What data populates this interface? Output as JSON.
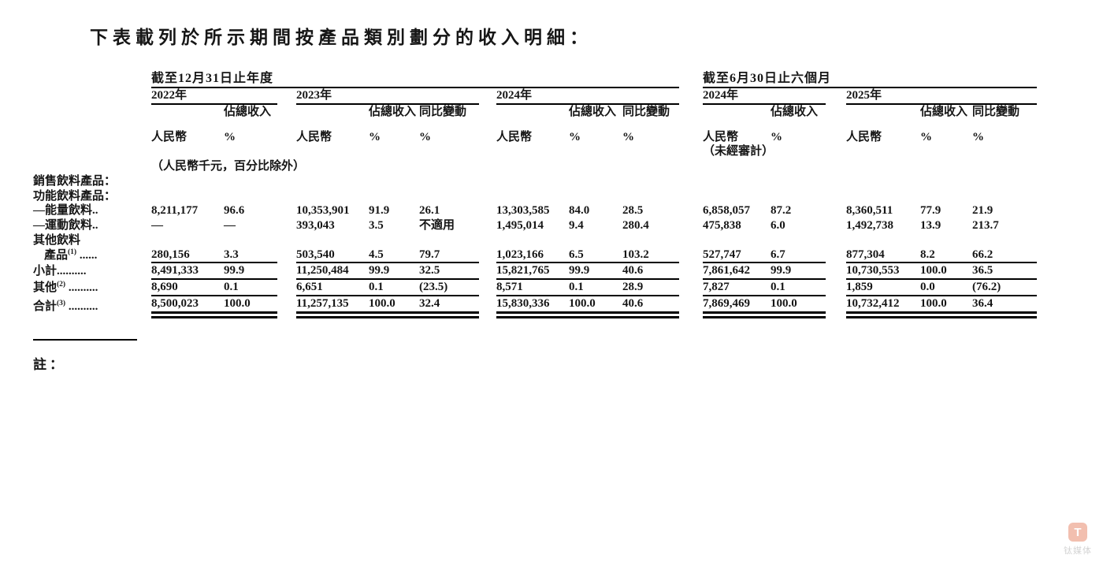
{
  "page": {
    "title": "下表載列於所示期間按產品類別劃分的收入明細：",
    "unit_note": "（人民幣千元，百分比除外）",
    "note_label": "註："
  },
  "table": {
    "period_groups": [
      {
        "label": "截至12月31日止年度"
      },
      {
        "label": "截至6月30日止六個月"
      }
    ],
    "years": [
      {
        "label": "2022年"
      },
      {
        "label": "2023年"
      },
      {
        "label": "2024年"
      },
      {
        "label": "2024年",
        "note": "（未經審計）"
      },
      {
        "label": "2025年"
      }
    ],
    "headers": {
      "rmb": "人民幣",
      "pct1": "佔總收入",
      "pct2": "%",
      "yoy1": "同比變動",
      "yoy2": "%",
      "unaudited": "（未經審計）"
    },
    "rows": [
      {
        "type": "section",
        "indent": 0,
        "label": "銷售飲料產品："
      },
      {
        "type": "section",
        "indent": 1,
        "label": "功能飲料產品："
      },
      {
        "type": "data",
        "indent": 2,
        "label_lines": [
          {
            "text": "—能量飲料",
            "leader": ".."
          }
        ],
        "values": [
          "8,211,177",
          "96.6",
          "10,353,901",
          "91.9",
          "26.1",
          "13,303,585",
          "84.0",
          "28.5",
          "6,858,057",
          "87.2",
          "8,360,511",
          "77.9",
          "21.9"
        ]
      },
      {
        "type": "data",
        "indent": 2,
        "label_lines": [
          {
            "text": "—運動飲料",
            "leader": ".."
          }
        ],
        "values": [
          "—",
          "—",
          "393,043",
          "3.5",
          "不適用",
          "1,495,014",
          "9.4",
          "280.4",
          "475,838",
          "6.0",
          "1,492,738",
          "13.9",
          "213.7"
        ]
      },
      {
        "type": "data",
        "indent": 1,
        "rule_below": true,
        "label_lines": [
          {
            "text": "其他飲料"
          },
          {
            "text": "產品",
            "sup": "(1)",
            "leader": " ......",
            "indent": 14
          }
        ],
        "values": [
          "280,156",
          "3.3",
          "503,540",
          "4.5",
          "79.7",
          "1,023,166",
          "6.5",
          "103.2",
          "527,747",
          "6.7",
          "877,304",
          "8.2",
          "66.2"
        ]
      },
      {
        "type": "data",
        "indent": 0,
        "rule_below": true,
        "label_lines": [
          {
            "text": "小計",
            "leader": ".........."
          }
        ],
        "values": [
          "8,491,333",
          "99.9",
          "11,250,484",
          "99.9",
          "32.5",
          "15,821,765",
          "99.9",
          "40.6",
          "7,861,642",
          "99.9",
          "10,730,553",
          "100.0",
          "36.5"
        ]
      },
      {
        "type": "data",
        "indent": 0,
        "rule_below": true,
        "label_lines": [
          {
            "text": "其他",
            "sup": "(2)",
            "leader": " .........."
          }
        ],
        "values": [
          "8,690",
          "0.1",
          "6,651",
          "0.1",
          "(23.5)",
          "8,571",
          "0.1",
          "28.9",
          "7,827",
          "0.1",
          "1,859",
          "0.0",
          "(76.2)"
        ]
      },
      {
        "type": "data",
        "indent": 0,
        "double_rule": true,
        "space_above": true,
        "label_lines": [
          {
            "text": "合計",
            "sup": "(3)",
            "leader": " .........."
          }
        ],
        "values": [
          "8,500,023",
          "100.0",
          "11,257,135",
          "100.0",
          "32.4",
          "15,830,336",
          "100.0",
          "40.6",
          "7,869,469",
          "100.0",
          "10,732,412",
          "100.0",
          "36.4"
        ]
      }
    ]
  },
  "watermark": {
    "icon_letter": "T",
    "text": "钛媒体"
  }
}
